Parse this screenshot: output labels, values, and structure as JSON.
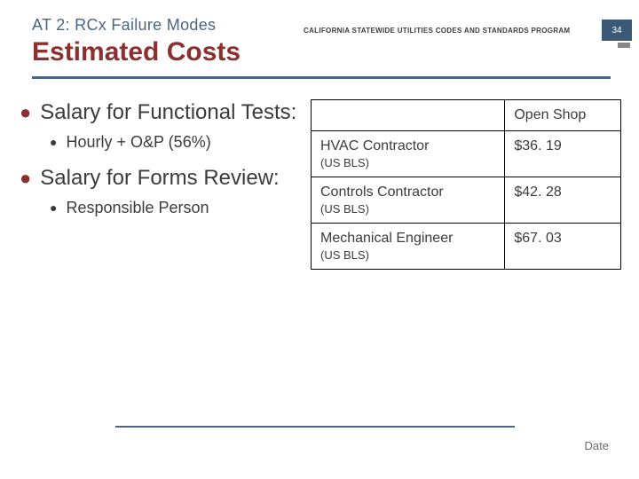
{
  "header": {
    "program_label": "CALIFORNIA STATEWIDE UTILITIES CODES AND STANDARDS PROGRAM",
    "page_number": "34"
  },
  "kicker": "AT 2: RCx Failure Modes",
  "title": "Estimated Costs",
  "bullets": {
    "item1": "Salary for Functional Tests:",
    "item1_sub": "Hourly + O&P (56%)",
    "item2": "Salary for Forms Review:",
    "item2_sub": "Responsible Person"
  },
  "table": {
    "header_blank": "",
    "header_open_shop": "Open Shop",
    "rows": {
      "r1_label": "HVAC Contractor",
      "r1_sub": "(US BLS)",
      "r1_value": "$36. 19",
      "r2_label": "Controls Contractor",
      "r2_sub": "(US BLS)",
      "r2_value": "$42. 28",
      "r3_label": "Mechanical Engineer",
      "r3_sub": "(US BLS)",
      "r3_value": "$67. 03"
    }
  },
  "footer": {
    "date_label": "Date"
  },
  "colors": {
    "title_color": "#8b2f2f",
    "accent_color": "#4a6585",
    "text_color": "#3b3b3b",
    "pagebox_bg": "#3b5876"
  }
}
